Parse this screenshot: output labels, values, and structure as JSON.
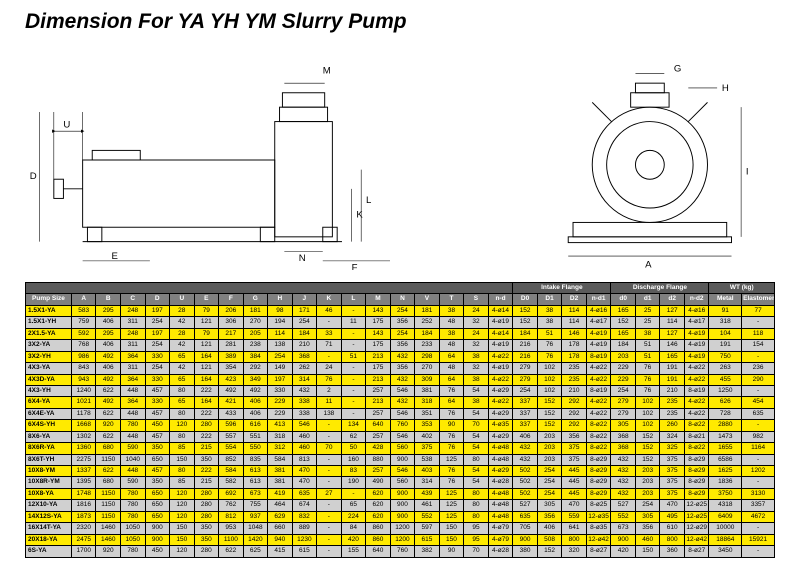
{
  "title": "Dimension For YA YH YM Slurry Pump",
  "diagram_labels": [
    "U",
    "D",
    "E",
    "B",
    "C",
    "N",
    "F",
    "M",
    "K",
    "L",
    "G",
    "H",
    "I",
    "A"
  ],
  "colors": {
    "row_yellow": "#ffea00",
    "row_gray": "#d0d0d0",
    "header_main": "#808080",
    "header_sub": "#5a5a5a"
  },
  "group_headers": [
    {
      "text": "",
      "span": 19
    },
    {
      "text": "Intake Flange",
      "span": 4
    },
    {
      "text": "Discharge Flange",
      "span": 4
    },
    {
      "text": "WT (kg)",
      "span": 2
    }
  ],
  "columns": [
    "Pump Size",
    "A",
    "B",
    "C",
    "D",
    "U",
    "E",
    "F",
    "G",
    "H",
    "J",
    "K",
    "L",
    "M",
    "N",
    "V",
    "T",
    "S",
    "n-d",
    "D0",
    "D1",
    "D2",
    "n-d1",
    "d0",
    "d1",
    "d2",
    "n-d2",
    "Metal",
    "Elastomer"
  ],
  "rows": [
    {
      "c": "y",
      "d": [
        "1.5X1-YA",
        "583",
        "295",
        "248",
        "197",
        "28",
        "79",
        "206",
        "181",
        "98",
        "171",
        "46",
        "-",
        "143",
        "254",
        "181",
        "38",
        "24",
        "4-ø14",
        "152",
        "38",
        "114",
        "4-ø16",
        "165",
        "25",
        "127",
        "4-ø16",
        "91",
        "77"
      ]
    },
    {
      "c": "g",
      "d": [
        "1.5X1-YH",
        "759",
        "406",
        "311",
        "254",
        "42",
        "121",
        "306",
        "270",
        "194",
        "254",
        "-",
        "11",
        "175",
        "356",
        "252",
        "48",
        "32",
        "4-ø19",
        "152",
        "38",
        "114",
        "4-ø17",
        "152",
        "25",
        "114",
        "4-ø17",
        "318",
        "-"
      ]
    },
    {
      "c": "y",
      "d": [
        "2X1.5-YA",
        "592",
        "295",
        "248",
        "197",
        "28",
        "79",
        "217",
        "205",
        "114",
        "184",
        "33",
        "-",
        "143",
        "254",
        "184",
        "38",
        "24",
        "4-ø14",
        "184",
        "51",
        "146",
        "4-ø19",
        "165",
        "38",
        "127",
        "4-ø19",
        "104",
        "118"
      ]
    },
    {
      "c": "g",
      "d": [
        "3X2-YA",
        "768",
        "406",
        "311",
        "254",
        "42",
        "121",
        "281",
        "238",
        "138",
        "210",
        "71",
        "-",
        "175",
        "356",
        "233",
        "48",
        "32",
        "4-ø19",
        "216",
        "76",
        "178",
        "4-ø19",
        "184",
        "51",
        "146",
        "4-ø19",
        "191",
        "154"
      ]
    },
    {
      "c": "y",
      "d": [
        "3X2-YH",
        "986",
        "492",
        "364",
        "330",
        "65",
        "164",
        "389",
        "384",
        "254",
        "368",
        "-",
        "51",
        "213",
        "432",
        "298",
        "64",
        "38",
        "4-ø22",
        "216",
        "76",
        "178",
        "8-ø19",
        "203",
        "51",
        "165",
        "4-ø19",
        "750",
        "-"
      ]
    },
    {
      "c": "g",
      "d": [
        "4X3-YA",
        "843",
        "406",
        "311",
        "254",
        "42",
        "121",
        "354",
        "292",
        "149",
        "262",
        "24",
        "-",
        "175",
        "356",
        "270",
        "48",
        "32",
        "4-ø19",
        "279",
        "102",
        "235",
        "4-ø22",
        "229",
        "76",
        "191",
        "4-ø22",
        "263",
        "236"
      ]
    },
    {
      "c": "y",
      "d": [
        "4X3D-YA",
        "943",
        "492",
        "364",
        "330",
        "65",
        "164",
        "423",
        "349",
        "197",
        "314",
        "76",
        "-",
        "213",
        "432",
        "309",
        "64",
        "38",
        "4-ø22",
        "279",
        "102",
        "235",
        "4-ø22",
        "229",
        "76",
        "191",
        "4-ø22",
        "455",
        "290"
      ]
    },
    {
      "c": "g",
      "d": [
        "4X3-YH",
        "1240",
        "622",
        "448",
        "457",
        "80",
        "222",
        "492",
        "492",
        "330",
        "432",
        "2",
        "-",
        "257",
        "546",
        "381",
        "76",
        "54",
        "4-ø29",
        "254",
        "102",
        "210",
        "8-ø19",
        "254",
        "76",
        "210",
        "8-ø19",
        "1250",
        "-"
      ]
    },
    {
      "c": "y",
      "d": [
        "6X4-YA",
        "1021",
        "492",
        "364",
        "330",
        "65",
        "164",
        "421",
        "406",
        "229",
        "338",
        "11",
        "-",
        "213",
        "432",
        "318",
        "64",
        "38",
        "4-ø22",
        "337",
        "152",
        "292",
        "4-ø22",
        "279",
        "102",
        "235",
        "4-ø22",
        "626",
        "454"
      ]
    },
    {
      "c": "g",
      "d": [
        "6X4E-YA",
        "1178",
        "622",
        "448",
        "457",
        "80",
        "222",
        "433",
        "406",
        "229",
        "338",
        "138",
        "-",
        "257",
        "546",
        "351",
        "76",
        "54",
        "4-ø29",
        "337",
        "152",
        "292",
        "4-ø22",
        "279",
        "102",
        "235",
        "4-ø22",
        "728",
        "635"
      ]
    },
    {
      "c": "y",
      "d": [
        "6X4S-YH",
        "1668",
        "920",
        "780",
        "450",
        "120",
        "280",
        "596",
        "616",
        "413",
        "546",
        "-",
        "134",
        "640",
        "760",
        "353",
        "90",
        "70",
        "4-ø35",
        "337",
        "152",
        "292",
        "8-ø22",
        "305",
        "102",
        "260",
        "8-ø22",
        "2880",
        "-"
      ]
    },
    {
      "c": "g",
      "d": [
        "8X6-YA",
        "1302",
        "622",
        "448",
        "457",
        "80",
        "222",
        "557",
        "551",
        "318",
        "460",
        "-",
        "62",
        "257",
        "546",
        "402",
        "76",
        "54",
        "4-ø29",
        "406",
        "203",
        "356",
        "8-ø22",
        "368",
        "152",
        "324",
        "8-ø21",
        "1473",
        "982"
      ]
    },
    {
      "c": "y",
      "d": [
        "8X6R-YA",
        "1360",
        "680",
        "590",
        "350",
        "85",
        "215",
        "554",
        "550",
        "312",
        "460",
        "70",
        "50",
        "428",
        "560",
        "375",
        "76",
        "54",
        "4-ø48",
        "432",
        "203",
        "375",
        "8-ø22",
        "368",
        "152",
        "325",
        "8-ø22",
        "1655",
        "1164"
      ]
    },
    {
      "c": "g",
      "d": [
        "8X6T-YH",
        "2275",
        "1150",
        "1040",
        "650",
        "150",
        "350",
        "852",
        "835",
        "584",
        "813",
        "-",
        "160",
        "880",
        "900",
        "538",
        "125",
        "80",
        "4-ø48",
        "432",
        "203",
        "375",
        "8-ø29",
        "432",
        "152",
        "375",
        "8-ø29",
        "6586",
        "-"
      ]
    },
    {
      "c": "y",
      "d": [
        "10X8-YM",
        "1337",
        "622",
        "448",
        "457",
        "80",
        "222",
        "584",
        "613",
        "381",
        "470",
        "-",
        "83",
        "257",
        "546",
        "403",
        "76",
        "54",
        "4-ø29",
        "502",
        "254",
        "445",
        "8-ø29",
        "432",
        "203",
        "375",
        "8-ø29",
        "1625",
        "1202"
      ]
    },
    {
      "c": "g",
      "d": [
        "10X8R-YM",
        "1395",
        "680",
        "590",
        "350",
        "85",
        "215",
        "582",
        "613",
        "381",
        "470",
        "-",
        "190",
        "490",
        "560",
        "314",
        "76",
        "54",
        "4-ø28",
        "502",
        "254",
        "445",
        "8-ø29",
        "432",
        "203",
        "375",
        "8-ø29",
        "1836",
        "-"
      ]
    },
    {
      "c": "y",
      "d": [
        "10X8-YA",
        "1748",
        "1150",
        "780",
        "650",
        "120",
        "280",
        "692",
        "673",
        "419",
        "635",
        "27",
        "-",
        "620",
        "900",
        "439",
        "125",
        "80",
        "4-ø48",
        "502",
        "254",
        "445",
        "8-ø29",
        "432",
        "203",
        "375",
        "8-ø29",
        "3750",
        "3130"
      ]
    },
    {
      "c": "g",
      "d": [
        "12X10-YA",
        "1816",
        "1150",
        "780",
        "650",
        "120",
        "280",
        "762",
        "755",
        "464",
        "674",
        "-",
        "65",
        "620",
        "900",
        "461",
        "125",
        "80",
        "4-ø48",
        "527",
        "305",
        "470",
        "8-ø25",
        "527",
        "254",
        "470",
        "12-ø25",
        "4318",
        "3357"
      ]
    },
    {
      "c": "y",
      "d": [
        "14X12S-YA",
        "1873",
        "1150",
        "780",
        "650",
        "120",
        "280",
        "812",
        "937",
        "629",
        "832",
        "-",
        "224",
        "620",
        "900",
        "552",
        "125",
        "80",
        "4-ø48",
        "635",
        "356",
        "559",
        "12-ø35",
        "552",
        "305",
        "495",
        "12-ø25",
        "6409",
        "4672"
      ]
    },
    {
      "c": "g",
      "d": [
        "16X14T-YA",
        "2320",
        "1460",
        "1050",
        "900",
        "150",
        "350",
        "953",
        "1048",
        "660",
        "889",
        "-",
        "84",
        "860",
        "1200",
        "597",
        "150",
        "95",
        "4-ø79",
        "705",
        "406",
        "641",
        "8-ø35",
        "673",
        "356",
        "610",
        "12-ø29",
        "10000",
        "-"
      ]
    },
    {
      "c": "y",
      "d": [
        "20X18-YA",
        "2475",
        "1460",
        "1050",
        "900",
        "150",
        "350",
        "1100",
        "1420",
        "940",
        "1230",
        "-",
        "420",
        "860",
        "1200",
        "615",
        "150",
        "95",
        "4-ø79",
        "900",
        "508",
        "800",
        "12-ø42",
        "900",
        "460",
        "800",
        "12-ø42",
        "18864",
        "15921"
      ]
    },
    {
      "c": "g",
      "d": [
        "6S-YA",
        "1700",
        "920",
        "780",
        "450",
        "120",
        "280",
        "622",
        "625",
        "415",
        "615",
        "-",
        "155",
        "640",
        "760",
        "382",
        "90",
        "70",
        "4-ø28",
        "380",
        "152",
        "320",
        "8-ø27",
        "420",
        "150",
        "360",
        "8-ø27",
        "3450",
        "-"
      ]
    }
  ]
}
